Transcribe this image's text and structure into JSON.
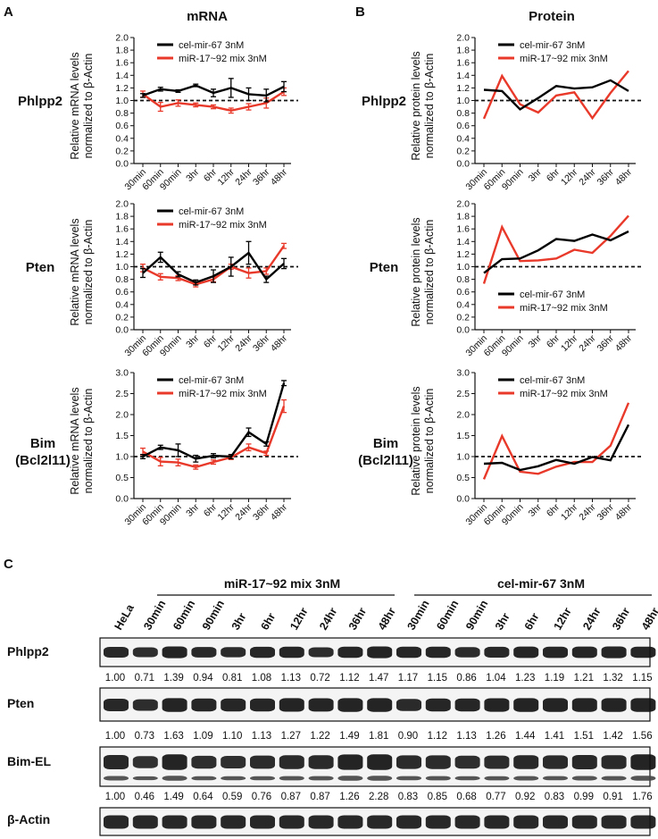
{
  "panels": {
    "A": "A",
    "B": "B",
    "C": "C"
  },
  "column_titles": {
    "mrna": "mRNA",
    "protein": "Protein"
  },
  "gene_labels": {
    "phlpp2": "Phlpp2",
    "pten": "Pten",
    "bim": "Bim",
    "bim_alias": "(Bcl2l11)"
  },
  "series_names": {
    "control": "cel-mir-67 3nM",
    "mix": "miR-17~92 mix 3nM"
  },
  "colors": {
    "control": "#000000",
    "mix": "#e8392a"
  },
  "ylabels": {
    "mrna": [
      "Relative mRNA levels",
      "normalized to β-Actin"
    ],
    "protein": [
      "Relative protein levels",
      "normalized to β-Actin"
    ]
  },
  "chart_data": [
    {
      "id": "mrna-phlpp2",
      "type": "line",
      "gene": "Phlpp2",
      "column": "mRNA",
      "categories": [
        "30min",
        "60min",
        "90min",
        "3hr",
        "6hr",
        "12hr",
        "24hr",
        "36hr",
        "48hr"
      ],
      "ylim": [
        0,
        2.0
      ],
      "yticks": [
        "0.0",
        "0.2",
        "0.4",
        "0.6",
        "0.8",
        "1.0",
        "1.2",
        "1.4",
        "1.6",
        "1.8",
        "2.0"
      ],
      "ytick_values": [
        0,
        0.2,
        0.4,
        0.6,
        0.8,
        1.0,
        1.2,
        1.4,
        1.6,
        1.8,
        2.0
      ],
      "reference_line": 1.0,
      "legend_position": "top",
      "xlabel": "",
      "ylabel": "Relative mRNA levels normalized to β-Actin",
      "series": [
        {
          "name": "cel-mir-67 3nM",
          "key": "control",
          "values": [
            1.08,
            1.18,
            1.15,
            1.24,
            1.12,
            1.2,
            1.1,
            1.08,
            1.22
          ],
          "errors": [
            0.03,
            0.03,
            0.02,
            0.02,
            0.06,
            0.15,
            0.1,
            0.1,
            0.08
          ]
        },
        {
          "name": "miR-17~92 mix 3nM",
          "key": "mix",
          "values": [
            1.1,
            0.9,
            0.96,
            0.93,
            0.9,
            0.84,
            0.9,
            0.96,
            1.14
          ],
          "errors": [
            0.05,
            0.07,
            0.05,
            0.03,
            0.03,
            0.04,
            0.05,
            0.08,
            0.06
          ]
        }
      ]
    },
    {
      "id": "mrna-pten",
      "type": "line",
      "gene": "Pten",
      "column": "mRNA",
      "categories": [
        "30min",
        "60min",
        "90min",
        "3hr",
        "6hr",
        "12hr",
        "24hr",
        "36hr",
        "48hr"
      ],
      "ylim": [
        0,
        2.0
      ],
      "yticks": [
        "0.0",
        "0.2",
        "0.4",
        "0.6",
        "0.8",
        "1.0",
        "1.2",
        "1.4",
        "1.6",
        "1.8",
        "2.0"
      ],
      "ytick_values": [
        0,
        0.2,
        0.4,
        0.6,
        0.8,
        1.0,
        1.2,
        1.4,
        1.6,
        1.8,
        2.0
      ],
      "reference_line": 1.0,
      "legend_position": "top",
      "xlabel": "",
      "ylabel": "Relative mRNA levels normalized to β-Actin",
      "series": [
        {
          "name": "cel-mir-67 3nM",
          "key": "control",
          "values": [
            0.9,
            1.15,
            0.88,
            0.75,
            0.85,
            1.0,
            1.22,
            0.8,
            1.05
          ],
          "errors": [
            0.07,
            0.08,
            0.04,
            0.04,
            0.1,
            0.15,
            0.18,
            0.05,
            0.08
          ]
        },
        {
          "name": "miR-17~92 mix 3nM",
          "key": "mix",
          "values": [
            0.98,
            0.84,
            0.82,
            0.72,
            0.8,
            1.0,
            0.9,
            0.93,
            1.33
          ],
          "errors": [
            0.06,
            0.05,
            0.04,
            0.04,
            0.04,
            0.04,
            0.08,
            0.05,
            0.04
          ]
        }
      ]
    },
    {
      "id": "mrna-bim",
      "type": "line",
      "gene": "Bim (Bcl2l11)",
      "column": "mRNA",
      "categories": [
        "30min",
        "60min",
        "90min",
        "3hr",
        "6hr",
        "12hr",
        "24hr",
        "36hr",
        "48hr"
      ],
      "ylim": [
        0,
        3.0
      ],
      "yticks": [
        "0.0",
        "0.5",
        "1.0",
        "1.5",
        "2.0",
        "2.5",
        "3.0"
      ],
      "ytick_values": [
        0,
        0.5,
        1.0,
        1.5,
        2.0,
        2.5,
        3.0
      ],
      "reference_line": 1.0,
      "legend_position": "top",
      "xlabel": "",
      "ylabel": "Relative mRNA levels normalized to β-Actin",
      "series": [
        {
          "name": "cel-mir-67 3nM",
          "key": "control",
          "values": [
            1.0,
            1.22,
            1.15,
            0.95,
            1.02,
            1.0,
            1.58,
            1.3,
            2.75
          ],
          "errors": [
            0.05,
            0.05,
            0.15,
            0.08,
            0.05,
            0.05,
            0.1,
            0.05,
            0.06
          ]
        },
        {
          "name": "miR-17~92 mix 3nM",
          "key": "mix",
          "values": [
            1.12,
            0.88,
            0.86,
            0.75,
            0.87,
            0.98,
            1.22,
            1.08,
            2.2
          ],
          "errors": [
            0.08,
            0.1,
            0.08,
            0.05,
            0.05,
            0.05,
            0.08,
            0.05,
            0.15
          ]
        }
      ]
    },
    {
      "id": "protein-phlpp2",
      "type": "line",
      "gene": "Phlpp2",
      "column": "Protein",
      "categories": [
        "30min",
        "60min",
        "90min",
        "3hr",
        "6hr",
        "12hr",
        "24hr",
        "36hr",
        "48hr"
      ],
      "ylim": [
        0,
        2.0
      ],
      "yticks": [
        "0.0",
        "0.2",
        "0.4",
        "0.6",
        "0.8",
        "1.0",
        "1.2",
        "1.4",
        "1.6",
        "1.8",
        "2.0"
      ],
      "ytick_values": [
        0,
        0.2,
        0.4,
        0.6,
        0.8,
        1.0,
        1.2,
        1.4,
        1.6,
        1.8,
        2.0
      ],
      "reference_line": 1.0,
      "legend_position": "top",
      "xlabel": "",
      "ylabel": "Relative protein levels normalized to β-Actin",
      "series": [
        {
          "name": "cel-mir-67 3nM",
          "key": "control",
          "values": [
            1.17,
            1.15,
            0.86,
            1.04,
            1.23,
            1.19,
            1.21,
            1.32,
            1.15
          ]
        },
        {
          "name": "miR-17~92 mix 3nM",
          "key": "mix",
          "values": [
            0.71,
            1.39,
            0.94,
            0.81,
            1.08,
            1.13,
            0.72,
            1.12,
            1.47
          ]
        }
      ]
    },
    {
      "id": "protein-pten",
      "type": "line",
      "gene": "Pten",
      "column": "Protein",
      "categories": [
        "30min",
        "60min",
        "90min",
        "3hr",
        "6hr",
        "12hr",
        "24hr",
        "36hr",
        "48hr"
      ],
      "ylim": [
        0,
        2.0
      ],
      "yticks": [
        "0.0",
        "0.2",
        "0.4",
        "0.6",
        "0.8",
        "1.0",
        "1.2",
        "1.4",
        "1.6",
        "1.8",
        "2.0"
      ],
      "ytick_values": [
        0,
        0.2,
        0.4,
        0.6,
        0.8,
        1.0,
        1.2,
        1.4,
        1.6,
        1.8,
        2.0
      ],
      "reference_line": 1.0,
      "legend_position": "bottom",
      "xlabel": "",
      "ylabel": "Relative protein levels normalized to β-Actin",
      "series": [
        {
          "name": "cel-mir-67 3nM",
          "key": "control",
          "values": [
            0.9,
            1.12,
            1.13,
            1.26,
            1.44,
            1.41,
            1.51,
            1.42,
            1.56
          ]
        },
        {
          "name": "miR-17~92 mix 3nM",
          "key": "mix",
          "values": [
            0.73,
            1.63,
            1.09,
            1.1,
            1.13,
            1.27,
            1.22,
            1.49,
            1.81
          ]
        }
      ]
    },
    {
      "id": "protein-bim",
      "type": "line",
      "gene": "Bim (Bcl2l11)",
      "column": "Protein",
      "categories": [
        "30min",
        "60min",
        "90min",
        "3hr",
        "6hr",
        "12hr",
        "24hr",
        "36hr",
        "48hr"
      ],
      "ylim": [
        0,
        3.0
      ],
      "yticks": [
        "0.0",
        "0.5",
        "1.0",
        "1.5",
        "2.0",
        "2.5",
        "3.0"
      ],
      "ytick_values": [
        0,
        0.5,
        1.0,
        1.5,
        2.0,
        2.5,
        3.0
      ],
      "reference_line": 1.0,
      "legend_position": "top",
      "xlabel": "",
      "ylabel": "Relative protein levels normalized to β-Actin",
      "series": [
        {
          "name": "cel-mir-67 3nM",
          "key": "control",
          "values": [
            0.83,
            0.85,
            0.68,
            0.77,
            0.92,
            0.83,
            0.99,
            0.91,
            1.76
          ]
        },
        {
          "name": "miR-17~92 mix 3nM",
          "key": "mix",
          "values": [
            0.46,
            1.49,
            0.64,
            0.59,
            0.76,
            0.87,
            0.87,
            1.26,
            2.28
          ]
        }
      ]
    }
  ],
  "western": {
    "group_mix": "miR-17~92 mix 3nM",
    "group_control": "cel-mir-67 3nM",
    "lanes": [
      "HeLa",
      "30min",
      "60min",
      "90min",
      "3hr",
      "6hr",
      "12hr",
      "24hr",
      "36hr",
      "48hr",
      "30min",
      "60min",
      "90min",
      "3hr",
      "6hr",
      "12hr",
      "24hr",
      "36hr",
      "48hr"
    ],
    "blots": [
      {
        "label": "Phlpp2",
        "quant": [
          "1.00",
          "0.71",
          "1.39",
          "0.94",
          "0.81",
          "1.08",
          "1.13",
          "0.72",
          "1.12",
          "1.47",
          "1.17",
          "1.15",
          "0.86",
          "1.04",
          "1.23",
          "1.19",
          "1.21",
          "1.32",
          "1.15"
        ]
      },
      {
        "label": "Pten",
        "quant": [
          "1.00",
          "0.73",
          "1.63",
          "1.09",
          "1.10",
          "1.13",
          "1.27",
          "1.22",
          "1.49",
          "1.81",
          "0.90",
          "1.12",
          "1.13",
          "1.26",
          "1.44",
          "1.41",
          "1.51",
          "1.42",
          "1.56"
        ]
      },
      {
        "label": "Bim-EL",
        "quant": [
          "1.00",
          "0.46",
          "1.49",
          "0.64",
          "0.59",
          "0.76",
          "0.87",
          "0.87",
          "1.26",
          "2.28",
          "0.83",
          "0.85",
          "0.68",
          "0.77",
          "0.92",
          "0.83",
          "0.99",
          "0.91",
          "1.76"
        ]
      },
      {
        "label": "β-Actin",
        "quant": []
      }
    ]
  }
}
